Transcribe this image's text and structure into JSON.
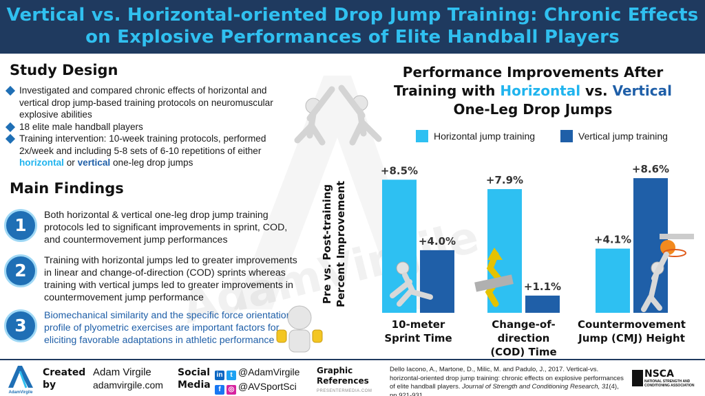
{
  "header": {
    "title": "Vertical vs. Horizontal-oriented Drop Jump Training: Chronic Effects on Explosive Performances of Elite Handball Players"
  },
  "study_design": {
    "heading": "Study Design",
    "bullets": [
      "Investigated and compared chronic effects of horizontal and vertical drop jump-based training protocols on neuromuscular explosive abilities",
      "18 elite male handball players",
      "Training intervention: 10-week training protocols, performed 2x/week and including 5-8 sets of 6-10 repetitions of either"
    ],
    "bullet3_horizontal": "horizontal",
    "bullet3_or": " or ",
    "bullet3_vertical": "vertical",
    "bullet3_tail": " one-leg drop jumps"
  },
  "main_findings": {
    "heading": "Main Findings",
    "items": [
      {
        "num": "1",
        "text": "Both horizontal & vertical one-leg drop jump training protocols led to significant improvements in sprint, COD, and countermovement jump performances"
      },
      {
        "num": "2",
        "text": "Training with horizontal jumps led to greater improvements in linear and change-of-direction (COD) sprints whereas training with vertical jumps led to greater improvements in countermovement jump performance"
      },
      {
        "num": "3",
        "text": "Biomechanical similarity and the specific force orientation profile of plyometric exercises are important factors for eliciting favorable adaptations in athletic performance"
      }
    ]
  },
  "chart_title": {
    "line1": "Performance Improvements After",
    "pre": "Training with ",
    "horizontal": "Horizontal",
    "vs": " vs. ",
    "vertical": "Vertical",
    "line3": "One-Leg Drop Jumps"
  },
  "chart_data": {
    "type": "bar",
    "categories": [
      "10-meter Sprint Time",
      "Change-of-direction (COD) Time",
      "Countermovement Jump (CMJ) Height"
    ],
    "category_lines": [
      [
        "10-meter",
        "Sprint Time"
      ],
      [
        "Change-of-",
        "direction",
        "(COD) Time"
      ],
      [
        "Countermovement",
        "Jump (CMJ) Height"
      ]
    ],
    "series": [
      {
        "name": "Horizontal jump training",
        "values": [
          8.5,
          7.9,
          4.1
        ],
        "labels": [
          "+8.5%",
          "+7.9%",
          "+4.1%"
        ],
        "color": "#2ec0f2"
      },
      {
        "name": "Vertical jump training",
        "values": [
          4.0,
          1.1,
          8.6
        ],
        "labels": [
          "+4.0%",
          "+1.1%",
          "+8.6%"
        ],
        "color": "#1f5fa8"
      }
    ],
    "ylabel": "Pre vs. Post-training Percent Improvement",
    "ylim": [
      0,
      9
    ],
    "grid": false,
    "legend_position": "top"
  },
  "footer": {
    "created_by_1": "Created",
    "created_by_2": "by",
    "author_name": "Adam Virgile",
    "author_site": "adamvirgile.com",
    "logo_text": "AdamVirgile",
    "social_1": "Social",
    "social_2": "Media",
    "handle_1": "@AdamVirgile",
    "handle_2": "@AVSportSci",
    "graphic_1": "Graphic",
    "graphic_2": "References",
    "graphic_source": "PRESENTERMEDIA.COM",
    "reference_main": "Dello Iacono, A., Martone, D., Milic, M. and Padulo, J., 2017. Vertical-vs. horizontal-oriented drop jump training: chronic effects on explosive performances of elite handball players. ",
    "reference_journal": "Journal of Strength and Conditioning Research, 31",
    "reference_tail": "(4), pp.921-931.",
    "nsca_name": "NSCA",
    "nsca_sub": "NATIONAL STRENGTH AND CONDITIONING ASSOCIATION"
  },
  "watermark": "AdamVirgile",
  "colors": {
    "header_bg": "#1f3a5f",
    "header_text": "#30c0f0",
    "accent_blue": "#1f6fb5"
  }
}
